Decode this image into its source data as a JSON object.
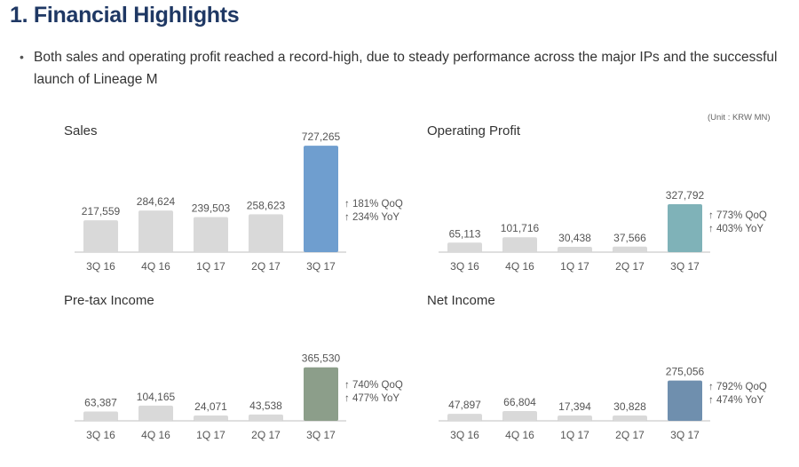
{
  "page": {
    "title": "1. Financial Highlights",
    "bullet_mark": "•",
    "bullet": "Both sales and operating profit reached a record-high, due to steady performance across the major IPs and the successful launch of Lineage M",
    "unit_note": "(Unit : KRW MN)"
  },
  "chart_data": [
    {
      "type": "bar",
      "title": "Sales",
      "categories": [
        "3Q 16",
        "4Q 16",
        "1Q 17",
        "2Q 17",
        "3Q 17"
      ],
      "values": [
        217559,
        284624,
        239503,
        258623,
        727265
      ],
      "value_labels": [
        "217,559",
        "284,624",
        "239,503",
        "258,623",
        "727,265"
      ],
      "bar_colors": [
        "#d9d9d9",
        "#d9d9d9",
        "#d9d9d9",
        "#d9d9d9",
        "#6f9ecf"
      ],
      "annotations": [
        "↑ 181% QoQ",
        "↑ 234% YoY"
      ],
      "xlabel": "",
      "ylabel": ""
    },
    {
      "type": "bar",
      "title": "Operating Profit",
      "categories": [
        "3Q 16",
        "4Q 16",
        "1Q 17",
        "2Q 17",
        "3Q 17"
      ],
      "values": [
        65113,
        101716,
        30438,
        37566,
        327792
      ],
      "value_labels": [
        "65,113",
        "101,716",
        "30,438",
        "37,566",
        "327,792"
      ],
      "bar_colors": [
        "#d9d9d9",
        "#d9d9d9",
        "#d9d9d9",
        "#d9d9d9",
        "#7fb2b8"
      ],
      "annotations": [
        "↑ 773% QoQ",
        "↑ 403% YoY"
      ],
      "xlabel": "",
      "ylabel": ""
    },
    {
      "type": "bar",
      "title": "Pre-tax Income",
      "categories": [
        "3Q 16",
        "4Q 16",
        "1Q 17",
        "2Q 17",
        "3Q 17"
      ],
      "values": [
        63387,
        104165,
        24071,
        43538,
        365530
      ],
      "value_labels": [
        "63,387",
        "104,165",
        "24,071",
        "43,538",
        "365,530"
      ],
      "bar_colors": [
        "#d9d9d9",
        "#d9d9d9",
        "#d9d9d9",
        "#d9d9d9",
        "#8c9e8a"
      ],
      "annotations": [
        "↑ 740% QoQ",
        "↑ 477% YoY"
      ],
      "xlabel": "",
      "ylabel": ""
    },
    {
      "type": "bar",
      "title": "Net Income",
      "categories": [
        "3Q 16",
        "4Q 16",
        "1Q 17",
        "2Q 17",
        "3Q 17"
      ],
      "values": [
        47897,
        66804,
        17394,
        30828,
        275056
      ],
      "value_labels": [
        "47,897",
        "66,804",
        "17,394",
        "30,828",
        "275,056"
      ],
      "bar_colors": [
        "#d9d9d9",
        "#d9d9d9",
        "#d9d9d9",
        "#d9d9d9",
        "#6f8fae"
      ],
      "annotations": [
        "↑ 792% QoQ",
        "↑ 474% YoY"
      ],
      "xlabel": "",
      "ylabel": ""
    }
  ]
}
